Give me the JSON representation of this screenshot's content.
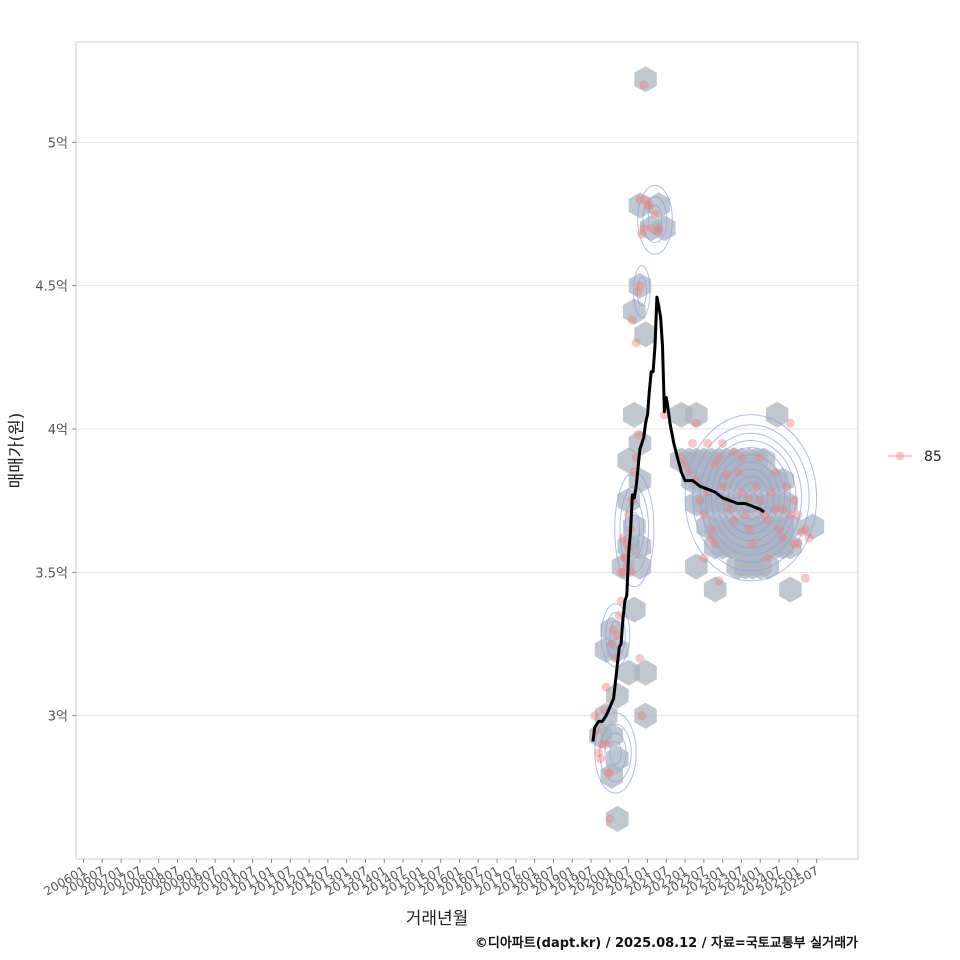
{
  "chart_data": {
    "type": "scatter",
    "xlabel": "거래년월",
    "ylabel": "매매가(원)",
    "caption": "©디아파트(dapt.kr) / 2025.08.12 / 자료=국토교통부 실거래가",
    "x_ticks": [
      "200601",
      "200607",
      "200701",
      "200707",
      "200801",
      "200807",
      "200901",
      "200907",
      "201001",
      "201007",
      "201101",
      "201107",
      "201201",
      "201207",
      "201301",
      "201307",
      "201401",
      "201407",
      "201501",
      "201507",
      "201601",
      "201607",
      "201701",
      "201707",
      "201801",
      "201807",
      "201901",
      "201907",
      "202001",
      "202007",
      "202101",
      "202107",
      "202201",
      "202207",
      "202301",
      "202307",
      "202401",
      "202407",
      "202501",
      "202507"
    ],
    "xlim": [
      2005.8,
      2026.6
    ],
    "ylim": [
      2.5,
      5.35
    ],
    "y_ticks": [
      {
        "value": 3.0,
        "label": "3억"
      },
      {
        "value": 3.5,
        "label": "3.5억"
      },
      {
        "value": 4.0,
        "label": "4억"
      },
      {
        "value": 4.5,
        "label": "4.5억"
      },
      {
        "value": 5.0,
        "label": "5억"
      }
    ],
    "legend": [
      {
        "label": "85",
        "color": "#f08080"
      }
    ],
    "colors": {
      "points": "#f08080",
      "trend": "#000000",
      "hex": "#aab4c0",
      "contour": "#8aa0e8",
      "grid": "#e6e6e6",
      "frame": "#cccccc"
    },
    "points": [
      [
        2019.6,
        3.0
      ],
      [
        2019.65,
        2.95
      ],
      [
        2019.7,
        2.87
      ],
      [
        2019.75,
        2.85
      ],
      [
        2019.8,
        2.9
      ],
      [
        2019.85,
        3.02
      ],
      [
        2019.9,
        2.9
      ],
      [
        2019.95,
        2.8
      ],
      [
        2020.0,
        2.8
      ],
      [
        2020.05,
        3.25
      ],
      [
        2020.1,
        3.3
      ],
      [
        2020.15,
        3.2
      ],
      [
        2020.2,
        3.28
      ],
      [
        2020.25,
        3.35
      ],
      [
        2020.3,
        3.4
      ],
      [
        2020.35,
        3.5
      ],
      [
        2020.4,
        3.55
      ],
      [
        2020.45,
        3.6
      ],
      [
        2020.5,
        3.7
      ],
      [
        2020.55,
        3.65
      ],
      [
        2020.6,
        3.75
      ],
      [
        2020.65,
        3.85
      ],
      [
        2020.7,
        3.9
      ],
      [
        2020.75,
        3.98
      ],
      [
        2020.8,
        3.2
      ],
      [
        2020.85,
        3.0
      ],
      [
        2019.9,
        3.1
      ],
      [
        2020.0,
        2.64
      ],
      [
        2020.35,
        3.62
      ],
      [
        2020.4,
        3.55
      ],
      [
        2020.5,
        3.58
      ],
      [
        2020.55,
        3.5
      ],
      [
        2020.3,
        3.5
      ],
      [
        2020.45,
        3.52
      ],
      [
        2020.6,
        4.38
      ],
      [
        2020.7,
        4.3
      ],
      [
        2020.75,
        4.48
      ],
      [
        2020.8,
        4.5
      ],
      [
        2020.85,
        4.68
      ],
      [
        2020.9,
        4.7
      ],
      [
        2020.95,
        4.8
      ],
      [
        2021.0,
        4.78
      ],
      [
        2021.1,
        4.7
      ],
      [
        2021.2,
        4.75
      ],
      [
        2021.3,
        4.7
      ],
      [
        2021.05,
        4.78
      ],
      [
        2021.3,
        4.69
      ],
      [
        2021.45,
        4.05
      ],
      [
        2020.9,
        5.2
      ],
      [
        2020.8,
        4.8
      ],
      [
        2021.9,
        3.9
      ],
      [
        2022.0,
        3.88
      ],
      [
        2022.1,
        3.85
      ],
      [
        2022.2,
        3.95
      ],
      [
        2022.3,
        3.82
      ],
      [
        2022.4,
        3.75
      ],
      [
        2022.5,
        3.7
      ],
      [
        2022.6,
        3.78
      ],
      [
        2022.7,
        3.65
      ],
      [
        2022.8,
        3.6
      ],
      [
        2022.9,
        3.9
      ],
      [
        2023.0,
        3.8
      ],
      [
        2023.1,
        3.75
      ],
      [
        2023.2,
        3.72
      ],
      [
        2023.3,
        3.68
      ],
      [
        2023.4,
        3.85
      ],
      [
        2023.5,
        3.78
      ],
      [
        2023.6,
        3.7
      ],
      [
        2023.7,
        3.65
      ],
      [
        2023.8,
        3.6
      ],
      [
        2023.9,
        3.8
      ],
      [
        2024.0,
        3.75
      ],
      [
        2024.1,
        3.7
      ],
      [
        2024.2,
        3.68
      ],
      [
        2024.3,
        3.78
      ],
      [
        2024.4,
        3.72
      ],
      [
        2024.5,
        3.65
      ],
      [
        2024.6,
        3.62
      ],
      [
        2024.7,
        3.8
      ],
      [
        2024.8,
        3.7
      ],
      [
        2024.9,
        3.75
      ],
      [
        2025.0,
        3.6
      ],
      [
        2025.1,
        3.64
      ],
      [
        2025.2,
        3.48
      ],
      [
        2025.3,
        3.62
      ],
      [
        2022.5,
        3.55
      ],
      [
        2022.3,
        4.02
      ],
      [
        2022.6,
        3.95
      ],
      [
        2023.0,
        3.95
      ],
      [
        2023.5,
        3.9
      ],
      [
        2022.8,
        3.88
      ],
      [
        2023.3,
        3.92
      ],
      [
        2024.0,
        3.9
      ],
      [
        2024.2,
        3.55
      ],
      [
        2024.6,
        3.72
      ],
      [
        2022.9,
        3.47
      ],
      [
        2025.0,
        3.7
      ],
      [
        2024.4,
        3.85
      ],
      [
        2023.7,
        3.76
      ],
      [
        2023.1,
        3.84
      ],
      [
        2022.7,
        3.62
      ],
      [
        2024.9,
        3.6
      ],
      [
        2025.2,
        3.65
      ],
      [
        2024.8,
        4.02
      ]
    ],
    "hexbins": [
      [
        2020.95,
        5.22
      ],
      [
        2020.8,
        4.78
      ],
      [
        2021.3,
        4.78
      ],
      [
        2021.1,
        4.7
      ],
      [
        2021.45,
        4.7
      ],
      [
        2020.8,
        4.5
      ],
      [
        2020.65,
        4.41
      ],
      [
        2020.95,
        4.33
      ],
      [
        2020.65,
        4.05
      ],
      [
        2020.8,
        3.95
      ],
      [
        2020.5,
        3.89
      ],
      [
        2020.8,
        3.82
      ],
      [
        2020.5,
        3.75
      ],
      [
        2020.65,
        3.66
      ],
      [
        2020.5,
        3.59
      ],
      [
        2020.8,
        3.59
      ],
      [
        2020.35,
        3.52
      ],
      [
        2020.8,
        3.52
      ],
      [
        2020.65,
        3.37
      ],
      [
        2020.05,
        3.3
      ],
      [
        2020.2,
        3.23
      ],
      [
        2019.9,
        3.23
      ],
      [
        2020.5,
        3.15
      ],
      [
        2020.95,
        3.15
      ],
      [
        2020.2,
        3.07
      ],
      [
        2019.9,
        3.0
      ],
      [
        2019.75,
        2.93
      ],
      [
        2020.05,
        2.93
      ],
      [
        2020.2,
        2.85
      ],
      [
        2020.05,
        2.79
      ],
      [
        2020.95,
        3.0
      ],
      [
        2020.2,
        2.64
      ],
      [
        2021.9,
        4.05
      ],
      [
        2022.3,
        4.05
      ],
      [
        2024.45,
        4.05
      ],
      [
        2021.9,
        3.89
      ],
      [
        2022.1,
        3.89
      ],
      [
        2022.3,
        3.89
      ],
      [
        2022.5,
        3.89
      ],
      [
        2022.7,
        3.89
      ],
      [
        2022.9,
        3.89
      ],
      [
        2023.1,
        3.89
      ],
      [
        2023.3,
        3.89
      ],
      [
        2023.5,
        3.89
      ],
      [
        2023.7,
        3.89
      ],
      [
        2023.9,
        3.89
      ],
      [
        2024.1,
        3.89
      ],
      [
        2022.2,
        3.82
      ],
      [
        2022.4,
        3.82
      ],
      [
        2022.6,
        3.82
      ],
      [
        2022.8,
        3.82
      ],
      [
        2023.0,
        3.82
      ],
      [
        2023.2,
        3.82
      ],
      [
        2023.4,
        3.82
      ],
      [
        2023.6,
        3.82
      ],
      [
        2023.8,
        3.82
      ],
      [
        2024.0,
        3.82
      ],
      [
        2024.2,
        3.82
      ],
      [
        2024.4,
        3.82
      ],
      [
        2024.6,
        3.82
      ],
      [
        2022.3,
        3.74
      ],
      [
        2022.5,
        3.74
      ],
      [
        2022.7,
        3.74
      ],
      [
        2022.9,
        3.74
      ],
      [
        2023.1,
        3.74
      ],
      [
        2023.3,
        3.74
      ],
      [
        2023.5,
        3.74
      ],
      [
        2023.7,
        3.74
      ],
      [
        2023.9,
        3.74
      ],
      [
        2024.1,
        3.74
      ],
      [
        2024.3,
        3.74
      ],
      [
        2024.5,
        3.74
      ],
      [
        2024.7,
        3.74
      ],
      [
        2022.6,
        3.66
      ],
      [
        2022.8,
        3.66
      ],
      [
        2023.0,
        3.66
      ],
      [
        2023.2,
        3.66
      ],
      [
        2023.4,
        3.66
      ],
      [
        2023.6,
        3.66
      ],
      [
        2023.8,
        3.66
      ],
      [
        2024.0,
        3.66
      ],
      [
        2024.2,
        3.66
      ],
      [
        2024.4,
        3.66
      ],
      [
        2024.6,
        3.66
      ],
      [
        2024.8,
        3.66
      ],
      [
        2025.4,
        3.66
      ],
      [
        2022.8,
        3.59
      ],
      [
        2023.0,
        3.59
      ],
      [
        2023.2,
        3.59
      ],
      [
        2023.4,
        3.59
      ],
      [
        2023.6,
        3.59
      ],
      [
        2023.8,
        3.59
      ],
      [
        2024.0,
        3.59
      ],
      [
        2024.2,
        3.59
      ],
      [
        2024.4,
        3.59
      ],
      [
        2024.6,
        3.59
      ],
      [
        2024.8,
        3.59
      ],
      [
        2022.3,
        3.52
      ],
      [
        2023.4,
        3.52
      ],
      [
        2023.6,
        3.52
      ],
      [
        2023.8,
        3.52
      ],
      [
        2024.0,
        3.52
      ],
      [
        2024.2,
        3.52
      ],
      [
        2022.8,
        3.44
      ],
      [
        2024.8,
        3.44
      ]
    ],
    "contours": [
      {
        "cx": 2020.15,
        "cy": 2.87,
        "rx": [
          0.15,
          0.28,
          0.42,
          0.55
        ],
        "ry": [
          0.04,
          0.07,
          0.1,
          0.14
        ]
      },
      {
        "cx": 2020.15,
        "cy": 3.28,
        "rx": [
          0.15,
          0.26,
          0.38
        ],
        "ry": [
          0.05,
          0.08,
          0.11
        ]
      },
      {
        "cx": 2020.65,
        "cy": 3.65,
        "rx": [
          0.14,
          0.25,
          0.38,
          0.52
        ],
        "ry": [
          0.06,
          0.1,
          0.15,
          0.2
        ]
      },
      {
        "cx": 2021.2,
        "cy": 4.73,
        "rx": [
          0.18,
          0.32,
          0.46
        ],
        "ry": [
          0.05,
          0.08,
          0.12
        ]
      },
      {
        "cx": 2020.85,
        "cy": 4.48,
        "rx": [
          0.12,
          0.22
        ],
        "ry": [
          0.05,
          0.09
        ]
      },
      {
        "cx": 2023.75,
        "cy": 3.76,
        "rx": [
          0.15,
          0.3,
          0.45,
          0.6,
          0.75,
          0.9,
          1.05,
          1.2,
          1.35,
          1.55,
          1.75
        ],
        "ry": [
          0.025,
          0.05,
          0.075,
          0.1,
          0.125,
          0.15,
          0.175,
          0.2,
          0.225,
          0.255,
          0.29
        ]
      }
    ],
    "series": [
      {
        "name": "trend",
        "points": [
          [
            2019.55,
            2.91
          ],
          [
            2019.6,
            2.96
          ],
          [
            2019.7,
            2.98
          ],
          [
            2019.8,
            2.98
          ],
          [
            2019.9,
            3.0
          ],
          [
            2020.0,
            3.03
          ],
          [
            2020.1,
            3.06
          ],
          [
            2020.15,
            3.12
          ],
          [
            2020.2,
            3.18
          ],
          [
            2020.25,
            3.24
          ],
          [
            2020.3,
            3.25
          ],
          [
            2020.35,
            3.34
          ],
          [
            2020.4,
            3.4
          ],
          [
            2020.45,
            3.42
          ],
          [
            2020.5,
            3.57
          ],
          [
            2020.55,
            3.64
          ],
          [
            2020.6,
            3.77
          ],
          [
            2020.65,
            3.76
          ],
          [
            2020.7,
            3.8
          ],
          [
            2020.8,
            3.93
          ],
          [
            2020.9,
            3.97
          ],
          [
            2020.95,
            4.02
          ],
          [
            2021.0,
            4.05
          ],
          [
            2021.05,
            4.13
          ],
          [
            2021.1,
            4.2
          ],
          [
            2021.15,
            4.2
          ],
          [
            2021.2,
            4.29
          ],
          [
            2021.25,
            4.46
          ],
          [
            2021.3,
            4.43
          ],
          [
            2021.35,
            4.39
          ],
          [
            2021.4,
            4.29
          ],
          [
            2021.45,
            4.06
          ],
          [
            2021.5,
            4.11
          ],
          [
            2021.55,
            4.07
          ],
          [
            2021.6,
            4.02
          ],
          [
            2021.7,
            3.95
          ],
          [
            2021.8,
            3.9
          ],
          [
            2021.9,
            3.85
          ],
          [
            2022.0,
            3.82
          ],
          [
            2022.2,
            3.82
          ],
          [
            2022.4,
            3.8
          ],
          [
            2022.6,
            3.79
          ],
          [
            2022.8,
            3.78
          ],
          [
            2023.0,
            3.76
          ],
          [
            2023.2,
            3.75
          ],
          [
            2023.4,
            3.74
          ],
          [
            2023.6,
            3.74
          ],
          [
            2023.8,
            3.73
          ],
          [
            2024.0,
            3.72
          ],
          [
            2024.1,
            3.71
          ]
        ]
      }
    ]
  }
}
